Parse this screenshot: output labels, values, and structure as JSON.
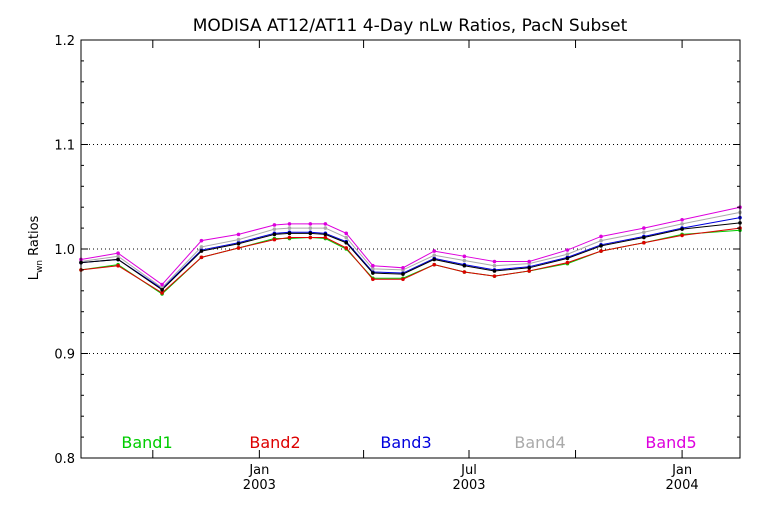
{
  "chart_data": {
    "type": "line",
    "title": "MODISA AT12/AT11 4-Day nLw Ratios, PacN Subset",
    "ylabel_main": "L",
    "ylabel_sub": "wn",
    "ylabel_rest": " Ratios",
    "xlabel": "",
    "ylim": [
      0.8,
      1.2
    ],
    "xlim": [
      "2002-07-31",
      "2004-02-20"
    ],
    "y_ticks": [
      0.8,
      0.9,
      1.0,
      1.1,
      1.2
    ],
    "y_tick_labels": [
      "0.8",
      "0.9",
      "1.0",
      "1.1",
      "1.2"
    ],
    "gridlines_y": [
      0.9,
      1.0,
      1.1
    ],
    "x_major_ticks": [
      {
        "date": "2003-01-01",
        "line1": "Jan",
        "line2": "2003"
      },
      {
        "date": "2003-07-01",
        "line1": "Jul",
        "line2": "2003"
      },
      {
        "date": "2004-01-01",
        "line1": "Jan",
        "line2": "2004"
      }
    ],
    "x_minor_ticks": [
      "2002-10-01",
      "2003-04-01",
      "2003-10-01"
    ],
    "x": [
      "2002-07-31",
      "2002-09-01",
      "2002-10-09",
      "2002-11-12",
      "2002-12-14",
      "2003-01-14",
      "2003-01-27",
      "2003-02-14",
      "2003-02-27",
      "2003-03-17",
      "2003-04-09",
      "2003-05-05",
      "2003-06-01",
      "2003-06-27",
      "2003-07-23",
      "2003-08-22",
      "2003-09-24",
      "2003-10-23",
      "2003-11-29",
      "2004-01-01",
      "2004-02-20"
    ],
    "series": [
      {
        "name": "Band1",
        "color": "#00cc00",
        "values": [
          0.98,
          0.985,
          0.957,
          0.992,
          1.001,
          1.01,
          1.01,
          1.011,
          1.01,
          1.0,
          0.972,
          0.972,
          0.985,
          0.978,
          0.974,
          0.979,
          0.986,
          0.998,
          1.006,
          1.014,
          1.018
        ]
      },
      {
        "name": "Band2",
        "color": "#dd0000",
        "values": [
          0.98,
          0.984,
          0.958,
          0.992,
          1.001,
          1.009,
          1.011,
          1.011,
          1.011,
          1.001,
          0.971,
          0.971,
          0.985,
          0.978,
          0.974,
          0.979,
          0.987,
          0.998,
          1.006,
          1.013,
          1.02
        ]
      },
      {
        "name": "Band3",
        "color": "#0000dd",
        "values": [
          0.987,
          0.99,
          0.962,
          0.999,
          1.006,
          1.015,
          1.016,
          1.016,
          1.015,
          1.007,
          0.978,
          0.977,
          0.991,
          0.985,
          0.98,
          0.983,
          0.992,
          1.004,
          1.012,
          1.02,
          1.03
        ]
      },
      {
        "name": "Band4",
        "color": "#aaaaaa",
        "values": [
          0.988,
          0.993,
          0.963,
          1.002,
          1.009,
          1.019,
          1.02,
          1.02,
          1.02,
          1.011,
          0.981,
          0.98,
          0.994,
          0.989,
          0.984,
          0.986,
          0.995,
          1.008,
          1.016,
          1.024,
          1.035
        ]
      },
      {
        "name": "Band5",
        "color": "#dd00dd",
        "values": [
          0.99,
          0.996,
          0.966,
          1.008,
          1.014,
          1.023,
          1.024,
          1.024,
          1.024,
          1.015,
          0.984,
          0.982,
          0.998,
          0.993,
          0.988,
          0.988,
          0.999,
          1.012,
          1.02,
          1.028,
          1.04
        ]
      }
    ],
    "black_series": {
      "name": "",
      "color": "#000000",
      "values": [
        0.987,
        0.99,
        0.961,
        0.998,
        1.005,
        1.014,
        1.015,
        1.015,
        1.014,
        1.006,
        0.977,
        0.976,
        0.99,
        0.984,
        0.979,
        0.982,
        0.991,
        1.003,
        1.011,
        1.019,
        1.025
      ]
    },
    "legend_placement": "bottom inside plot, horizontal",
    "grid": "horizontal dotted at 0.9, 1.0, 1.1"
  }
}
